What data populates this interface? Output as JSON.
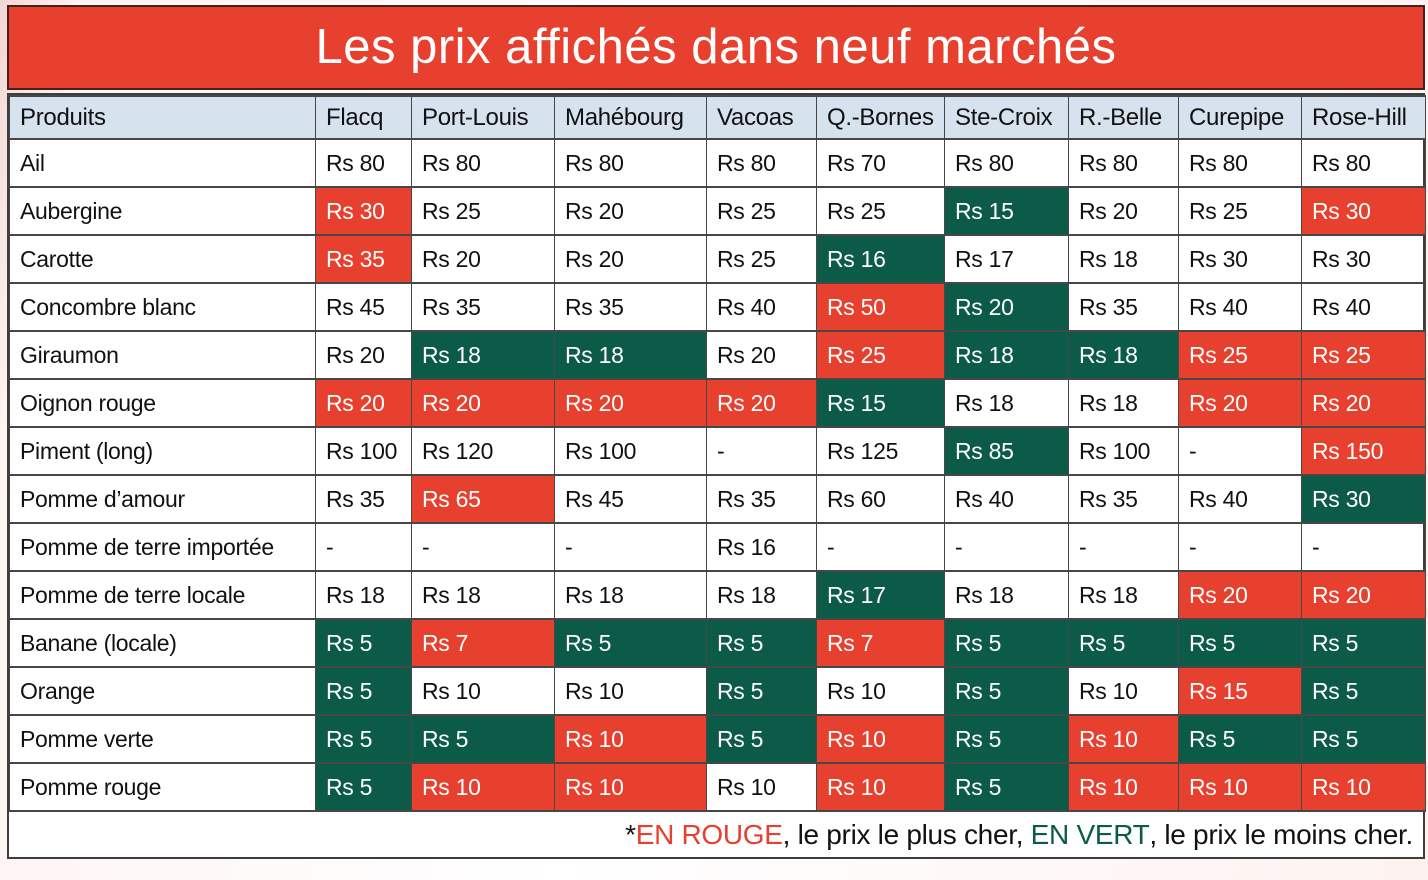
{
  "title": "Les prix affichés dans neuf marchés",
  "header": {
    "columns": [
      "Produits",
      "Flacq",
      "Port-Louis",
      "Mahébourg",
      "Vacoas",
      "Q.-Bornes",
      "Ste-Croix",
      "R.-Belle",
      "Curepipe",
      "Rose-Hill"
    ]
  },
  "currency_prefix": "Rs",
  "footer": {
    "asterisk": "*",
    "red_label": "EN ROUGE",
    "after_red": ", le prix le plus cher, ",
    "green_label": "EN VERT",
    "after_green": ", le prix le moins cher."
  },
  "colors": {
    "red": "#e8402e",
    "green": "#0c5b48",
    "header_bg": "#d6e3ee",
    "grid": "#474747"
  },
  "legend": {
    "red_meaning": "le prix le plus cher",
    "green_meaning": "le prix le moins cher"
  },
  "chart_data": {
    "type": "table",
    "title": "Les prix affichés dans neuf marchés",
    "unit": "Rs",
    "columns": [
      "Flacq",
      "Port-Louis",
      "Mahébourg",
      "Vacoas",
      "Q.-Bornes",
      "Ste-Croix",
      "R.-Belle",
      "Curepipe",
      "Rose-Hill"
    ],
    "highlight_legend": {
      "red": "le prix le plus cher",
      "green": "le prix le moins cher"
    },
    "rows": [
      {
        "product": "Ail",
        "prices": [
          80,
          80,
          80,
          80,
          70,
          80,
          80,
          80,
          80
        ],
        "highlight": [
          null,
          null,
          null,
          null,
          null,
          null,
          null,
          null,
          null
        ]
      },
      {
        "product": "Aubergine",
        "prices": [
          30,
          25,
          20,
          25,
          25,
          15,
          20,
          25,
          30
        ],
        "highlight": [
          "red",
          null,
          null,
          null,
          null,
          "green",
          null,
          null,
          "red"
        ]
      },
      {
        "product": "Carotte",
        "prices": [
          35,
          20,
          20,
          25,
          16,
          17,
          18,
          30,
          30
        ],
        "highlight": [
          "red",
          null,
          null,
          null,
          "green",
          null,
          null,
          null,
          null
        ]
      },
      {
        "product": "Concombre blanc",
        "prices": [
          45,
          35,
          35,
          40,
          50,
          20,
          35,
          40,
          40
        ],
        "highlight": [
          null,
          null,
          null,
          null,
          "red",
          "green",
          null,
          null,
          null
        ]
      },
      {
        "product": "Giraumon",
        "prices": [
          20,
          18,
          18,
          20,
          25,
          18,
          18,
          25,
          25
        ],
        "highlight": [
          null,
          "green",
          "green",
          null,
          "red",
          "green",
          "green",
          "red",
          "red"
        ]
      },
      {
        "product": "Oignon rouge",
        "prices": [
          20,
          20,
          20,
          20,
          15,
          18,
          18,
          20,
          20
        ],
        "highlight": [
          "red",
          "red",
          "red",
          "red",
          "green",
          null,
          null,
          "red",
          "red"
        ]
      },
      {
        "product": "Piment (long)",
        "prices": [
          100,
          120,
          100,
          null,
          125,
          85,
          100,
          null,
          150
        ],
        "highlight": [
          null,
          null,
          null,
          null,
          null,
          "green",
          null,
          null,
          "red"
        ]
      },
      {
        "product": "Pomme d’amour",
        "prices": [
          35,
          65,
          45,
          35,
          60,
          40,
          35,
          40,
          30
        ],
        "highlight": [
          null,
          "red",
          null,
          null,
          null,
          null,
          null,
          null,
          "green"
        ]
      },
      {
        "product": "Pomme de terre importée",
        "prices": [
          null,
          null,
          null,
          16,
          null,
          null,
          null,
          null,
          null
        ],
        "highlight": [
          null,
          null,
          null,
          null,
          null,
          null,
          null,
          null,
          null
        ]
      },
      {
        "product": "Pomme de terre locale",
        "prices": [
          18,
          18,
          18,
          18,
          17,
          18,
          18,
          20,
          20
        ],
        "highlight": [
          null,
          null,
          null,
          null,
          "green",
          null,
          null,
          "red",
          "red"
        ]
      },
      {
        "product": "Banane (locale)",
        "prices": [
          5,
          7,
          5,
          5,
          7,
          5,
          5,
          5,
          5
        ],
        "highlight": [
          "green",
          "red",
          "green",
          "green",
          "red",
          "green",
          "green",
          "green",
          "green"
        ]
      },
      {
        "product": "Orange",
        "prices": [
          5,
          10,
          10,
          5,
          10,
          5,
          10,
          15,
          5
        ],
        "highlight": [
          "green",
          null,
          null,
          "green",
          null,
          "green",
          null,
          "red",
          "green"
        ]
      },
      {
        "product": "Pomme verte",
        "prices": [
          5,
          5,
          10,
          5,
          10,
          5,
          10,
          5,
          5
        ],
        "highlight": [
          "green",
          "green",
          "red",
          "green",
          "red",
          "green",
          "red",
          "green",
          "green"
        ]
      },
      {
        "product": "Pomme rouge",
        "prices": [
          5,
          10,
          10,
          10,
          10,
          5,
          10,
          10,
          10
        ],
        "highlight": [
          "green",
          "red",
          "red",
          null,
          "red",
          "green",
          "red",
          "red",
          "red"
        ]
      }
    ]
  }
}
